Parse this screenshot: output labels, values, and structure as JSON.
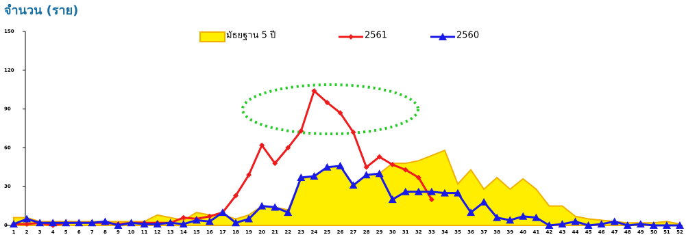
{
  "chart_data": {
    "type": "line",
    "y_label": "จำนวน (ราย)",
    "categories": [
      "1",
      "2",
      "3",
      "4",
      "5",
      "6",
      "7",
      "8",
      "9",
      "10",
      "11",
      "12",
      "13",
      "14",
      "15",
      "16",
      "17",
      "18",
      "19",
      "20",
      "21",
      "22",
      "23",
      "24",
      "25",
      "26",
      "27",
      "28",
      "29",
      "30",
      "31",
      "32",
      "33",
      "34",
      "35",
      "36",
      "37",
      "38",
      "39",
      "40",
      "41",
      "42",
      "43",
      "44",
      "45",
      "46",
      "47",
      "48",
      "49",
      "50",
      "51",
      "52"
    ],
    "series": [
      {
        "name": "มัธยฐาน 5 ปี",
        "color": "#ffee00",
        "area": true,
        "values": [
          6,
          6,
          3,
          3,
          3,
          3,
          3,
          3,
          3,
          3,
          3,
          8,
          6,
          4,
          10,
          8,
          8,
          5,
          8,
          15,
          14,
          12,
          36,
          38,
          45,
          46,
          31,
          39,
          40,
          48,
          48,
          50,
          54,
          58,
          32,
          43,
          28,
          37,
          28,
          36,
          28,
          15,
          15,
          7,
          5,
          4,
          3,
          2,
          2,
          2,
          3,
          1
        ]
      },
      {
        "name": "2561",
        "color": "#ee1c1c",
        "marker": "diamond",
        "values": [
          1,
          1,
          2,
          0,
          2,
          2,
          2,
          2,
          1,
          2,
          2,
          2,
          2,
          6,
          5,
          7,
          10,
          23,
          39,
          62,
          48,
          60,
          73,
          104,
          95,
          87,
          72,
          45,
          53,
          47,
          43,
          37,
          20,
          null,
          null,
          null,
          null,
          null,
          null,
          null,
          null,
          null,
          null,
          null,
          null,
          null,
          null,
          null,
          null,
          null,
          null,
          null
        ]
      },
      {
        "name": "2560",
        "color": "#1a1ae6",
        "marker": "triangle",
        "values": [
          1,
          5,
          2,
          2,
          2,
          2,
          2,
          3,
          0,
          2,
          1,
          1,
          2,
          1,
          4,
          3,
          10,
          2,
          5,
          15,
          14,
          10,
          37,
          38,
          45,
          46,
          31,
          39,
          40,
          20,
          26,
          26,
          26,
          25,
          25,
          10,
          18,
          6,
          4,
          7,
          6,
          0,
          1,
          3,
          0,
          1,
          3,
          0,
          1,
          0,
          0,
          0
        ]
      }
    ],
    "ylim": [
      0,
      150
    ],
    "yticks": [
      0,
      30,
      60,
      90,
      120,
      150
    ],
    "legend": "top"
  }
}
